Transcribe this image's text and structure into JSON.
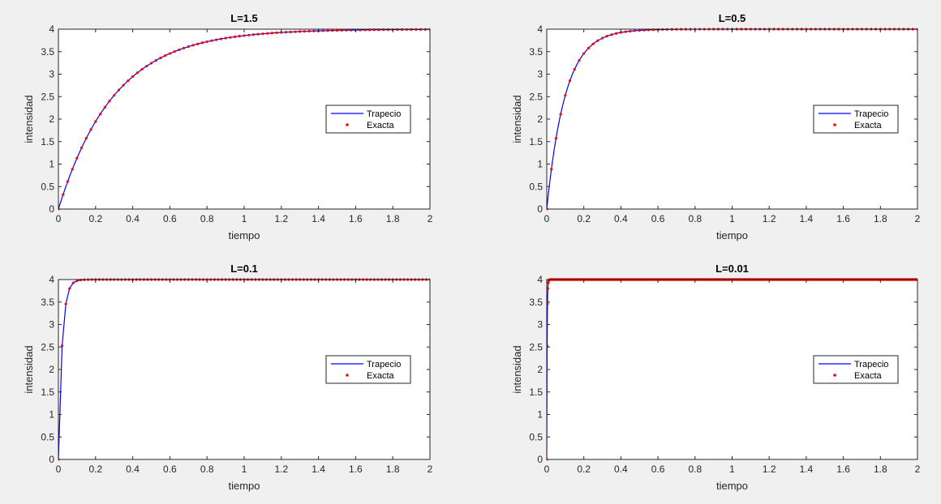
{
  "figure": {
    "background": "#f0f0f0",
    "axes_background": "#ffffff",
    "colors": {
      "trapecio": "#0000ff",
      "exacta": "#ff0000"
    }
  },
  "chart_data": [
    {
      "type": "line",
      "title": "L=1.5",
      "xlabel": "tiempo",
      "ylabel": "intensidad",
      "xlim": [
        0,
        2
      ],
      "ylim": [
        0,
        4
      ],
      "xticks": [
        "0",
        "0.2",
        "0.4",
        "0.6",
        "0.8",
        "1",
        "1.2",
        "1.4",
        "1.6",
        "1.8",
        "2"
      ],
      "yticks": [
        "0",
        "0.5",
        "1",
        "1.5",
        "2",
        "2.5",
        "3",
        "3.5",
        "4"
      ],
      "grid": false,
      "legend": {
        "position": "right",
        "entries": [
          "Trapecio",
          "Exacta"
        ]
      },
      "series": [
        {
          "name": "Trapecio",
          "style": "line",
          "color": "#0000ff",
          "model": {
            "A": 4,
            "k": 3.333,
            "x_start": 0,
            "x_end": 2,
            "n": 201
          }
        },
        {
          "name": "Exacta",
          "style": "markers",
          "color": "#ff0000",
          "model": {
            "A": 4,
            "k": 3.333,
            "x_start": 0,
            "x_end": 2,
            "n": 81
          }
        }
      ]
    },
    {
      "type": "line",
      "title": "L=0.5",
      "xlabel": "tiempo",
      "ylabel": "intensidad",
      "xlim": [
        0,
        2
      ],
      "ylim": [
        0,
        4
      ],
      "xticks": [
        "0",
        "0.2",
        "0.4",
        "0.6",
        "0.8",
        "1",
        "1.2",
        "1.4",
        "1.6",
        "1.8",
        "2"
      ],
      "yticks": [
        "0",
        "0.5",
        "1",
        "1.5",
        "2",
        "2.5",
        "3",
        "3.5",
        "4"
      ],
      "grid": false,
      "legend": {
        "position": "right",
        "entries": [
          "Trapecio",
          "Exacta"
        ]
      },
      "series": [
        {
          "name": "Trapecio",
          "style": "line",
          "color": "#0000ff",
          "model": {
            "A": 4,
            "k": 10,
            "x_start": 0,
            "x_end": 2,
            "n": 201
          }
        },
        {
          "name": "Exacta",
          "style": "markers",
          "color": "#ff0000",
          "model": {
            "A": 4,
            "k": 10,
            "x_start": 0,
            "x_end": 2,
            "n": 81
          }
        }
      ]
    },
    {
      "type": "line",
      "title": "L=0.1",
      "xlabel": "tiempo",
      "ylabel": "intensidad",
      "xlim": [
        0,
        2
      ],
      "ylim": [
        0,
        4
      ],
      "xticks": [
        "0",
        "0.2",
        "0.4",
        "0.6",
        "0.8",
        "1",
        "1.2",
        "1.4",
        "1.6",
        "1.8",
        "2"
      ],
      "yticks": [
        "0",
        "0.5",
        "1",
        "1.5",
        "2",
        "2.5",
        "3",
        "3.5",
        "4"
      ],
      "grid": false,
      "legend": {
        "position": "right",
        "entries": [
          "Trapecio",
          "Exacta"
        ]
      },
      "series": [
        {
          "name": "Trapecio",
          "style": "line",
          "color": "#0000ff",
          "model": {
            "A": 4,
            "k": 50,
            "x_start": 0,
            "x_end": 2,
            "n": 101
          }
        },
        {
          "name": "Exacta",
          "style": "markers",
          "color": "#ff0000",
          "model": {
            "A": 4,
            "k": 50,
            "x_start": 0,
            "x_end": 2,
            "n": 101
          }
        }
      ]
    },
    {
      "type": "line",
      "title": "L=0.01",
      "xlabel": "tiempo",
      "ylabel": "intensidad",
      "xlim": [
        0,
        2
      ],
      "ylim": [
        0,
        4
      ],
      "xticks": [
        "0",
        "0.2",
        "0.4",
        "0.6",
        "0.8",
        "1",
        "1.2",
        "1.4",
        "1.6",
        "1.8",
        "2"
      ],
      "yticks": [
        "0",
        "0.5",
        "1",
        "1.5",
        "2",
        "2.5",
        "3",
        "3.5",
        "4"
      ],
      "grid": false,
      "legend": {
        "position": "right",
        "entries": [
          "Trapecio",
          "Exacta"
        ]
      },
      "series": [
        {
          "name": "Trapecio",
          "style": "line",
          "color": "#0000ff",
          "model": {
            "A": 4,
            "k": 500,
            "x_start": 0,
            "x_end": 2,
            "n": 1001
          }
        },
        {
          "name": "Exacta",
          "style": "markers",
          "color": "#ff0000",
          "model": {
            "A": 4,
            "k": 500,
            "x_start": 0,
            "x_end": 2,
            "n": 1001
          }
        }
      ]
    }
  ]
}
